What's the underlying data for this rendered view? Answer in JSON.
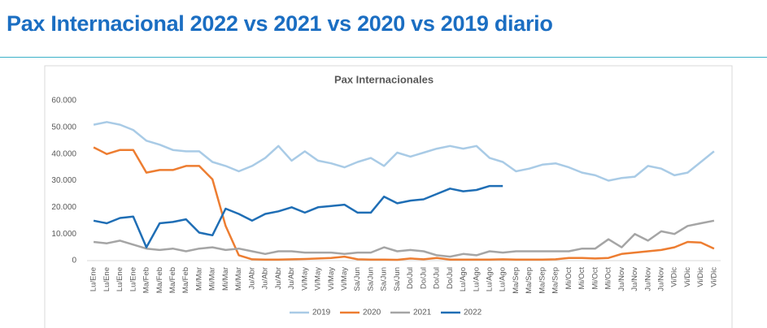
{
  "chart_data": {
    "type": "line",
    "page_title": "Pax Internacional 2022 vs 2021 vs 2020 vs 2019 diario",
    "title": "Pax Internacionales",
    "categories": [
      "Lu/Ene",
      "Lu/Ene",
      "Lu/Ene",
      "Lu/Ene",
      "Ma/Feb",
      "Ma/Feb",
      "Ma/Feb",
      "Ma/Feb",
      "Mi/Mar",
      "Mi/Mar",
      "Mi/Mar",
      "Mi/Mar",
      "Ju/Abr",
      "Ju/Abr",
      "Ju/Abr",
      "Ju/Abr",
      "Vi/May",
      "Vi/May",
      "Vi/May",
      "Vi/May",
      "Sa/Jun",
      "Sa/Jun",
      "Sa/Jun",
      "Sa/Jun",
      "Do/Jul",
      "Do/Jul",
      "Do/Jul",
      "Do/Jul",
      "Lu/Ago",
      "Lu/Ago",
      "Lu/Ago",
      "Lu/Ago",
      "Ma/Sep",
      "Ma/Sep",
      "Ma/Sep",
      "Ma/Sep",
      "Mi/Oct",
      "Mi/Oct",
      "Mi/Oct",
      "Mi/Oct",
      "Ju/Nov",
      "Ju/Nov",
      "Ju/Nov",
      "Ju/Nov",
      "Vi/Dic",
      "Vi/Dic",
      "Vi/Dic",
      "Vi/Dic"
    ],
    "series": [
      {
        "name": "2019",
        "color": "#a9cbe6",
        "values": [
          51000,
          52000,
          51000,
          49000,
          45000,
          43500,
          41500,
          41000,
          41000,
          37000,
          35500,
          33500,
          35500,
          38500,
          43000,
          37500,
          41000,
          37500,
          36500,
          35000,
          37000,
          38500,
          35500,
          40500,
          39000,
          40500,
          42000,
          43000,
          42000,
          43000,
          38500,
          37000,
          33500,
          34500,
          36000,
          36500,
          35000,
          33000,
          32000,
          30000,
          31000,
          31500,
          35500,
          34500,
          32000,
          33000,
          37000,
          41000
        ]
      },
      {
        "name": "2020",
        "color": "#ed7d31",
        "values": [
          42500,
          40000,
          41500,
          41500,
          33000,
          34000,
          34000,
          35500,
          35500,
          30500,
          13000,
          2000,
          500,
          400,
          400,
          500,
          600,
          800,
          1000,
          1500,
          500,
          400,
          400,
          300,
          800,
          500,
          1000,
          400,
          400,
          400,
          400,
          500,
          400,
          400,
          400,
          500,
          1000,
          1000,
          800,
          1000,
          2500,
          3000,
          3500,
          4000,
          5000,
          7000,
          6800,
          4500
        ]
      },
      {
        "name": "2021",
        "color": "#a5a5a5",
        "values": [
          7000,
          6500,
          7500,
          6000,
          4500,
          4000,
          4500,
          3500,
          4500,
          5000,
          4000,
          4500,
          3500,
          2500,
          3500,
          3500,
          3000,
          3000,
          3000,
          2500,
          3000,
          3000,
          5000,
          3500,
          4000,
          3500,
          2000,
          1500,
          2500,
          2000,
          3500,
          3000,
          3500,
          3500,
          3500,
          3500,
          3500,
          4500,
          4500,
          8000,
          5000,
          10000,
          7500,
          11000,
          10000,
          13000,
          14000,
          15000
        ]
      },
      {
        "name": "2022",
        "color": "#1f6eb5",
        "values": [
          15000,
          14000,
          16000,
          16500,
          5000,
          14000,
          14500,
          15500,
          10500,
          9500,
          19500,
          17500,
          15000,
          17500,
          18500,
          20000,
          18000,
          20000,
          20500,
          21000,
          18000,
          18000,
          24000,
          21500,
          22500,
          23000,
          25000,
          27000,
          26000,
          26500,
          28000,
          28000,
          null,
          null,
          null,
          null,
          null,
          null,
          null,
          null,
          null,
          null,
          null,
          null,
          null,
          null,
          null,
          null
        ]
      }
    ],
    "ylim": [
      0,
      60000
    ],
    "yticks": [
      0,
      {
        "value": 10000,
        "label": "10.000"
      },
      {
        "value": 20000,
        "label": "20.000"
      },
      {
        "value": 30000,
        "label": "30.000"
      },
      {
        "value": 40000,
        "label": "40.000"
      },
      {
        "value": 50000,
        "label": "50.000"
      },
      {
        "value": 60000,
        "label": "60.000"
      }
    ],
    "grid": false,
    "legend": "bottom"
  }
}
